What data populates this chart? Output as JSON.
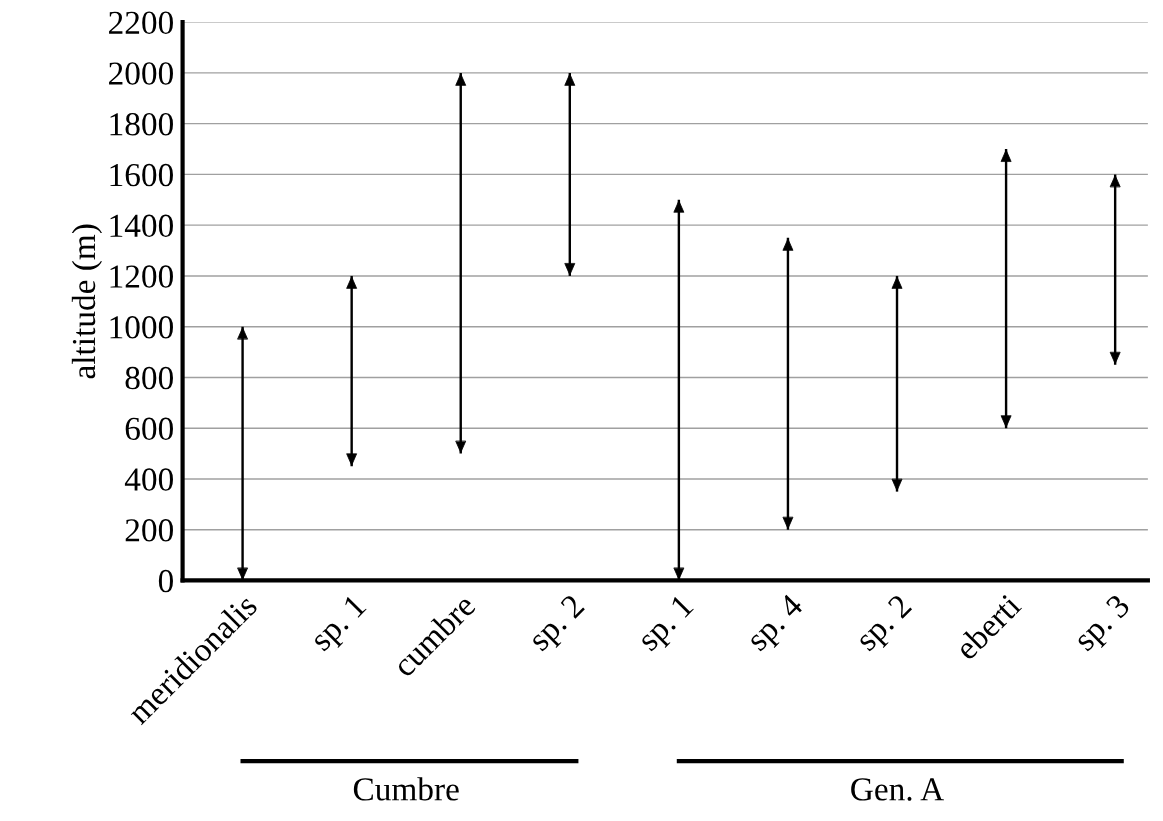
{
  "chart_data": {
    "type": "bar",
    "ylabel": "altitude (m)",
    "categories": [
      "meridionalis",
      "sp. 1",
      "cumbre",
      "sp. 2",
      "sp. 1",
      "sp. 4",
      "sp. 2",
      "eberti",
      "sp. 3"
    ],
    "base": [
      0,
      450,
      500,
      1200,
      0,
      200,
      350,
      600,
      850
    ],
    "values": [
      1000,
      750,
      1500,
      800,
      1500,
      1150,
      850,
      1100,
      750
    ],
    "color": "#000000",
    "ylim": [
      0,
      2200
    ],
    "yticks": [
      0,
      200,
      400,
      600,
      800,
      1000,
      1200,
      1400,
      1600,
      1800,
      2000,
      2200
    ],
    "grid": "y",
    "annotations": [
      "Cumbre",
      "Gen. A"
    ]
  }
}
